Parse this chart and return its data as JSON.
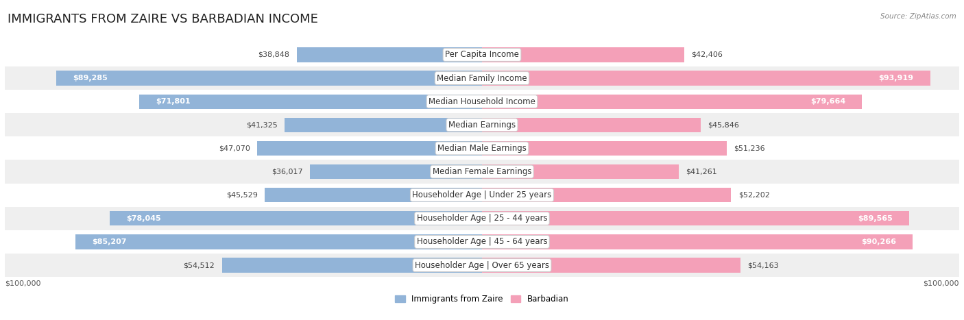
{
  "title": "IMMIGRANTS FROM ZAIRE VS BARBADIAN INCOME",
  "source": "Source: ZipAtlas.com",
  "categories": [
    "Per Capita Income",
    "Median Family Income",
    "Median Household Income",
    "Median Earnings",
    "Median Male Earnings",
    "Median Female Earnings",
    "Householder Age | Under 25 years",
    "Householder Age | 25 - 44 years",
    "Householder Age | 45 - 64 years",
    "Householder Age | Over 65 years"
  ],
  "zaire_values": [
    38848,
    89285,
    71801,
    41325,
    47070,
    36017,
    45529,
    78045,
    85207,
    54512
  ],
  "barbadian_values": [
    42406,
    93919,
    79664,
    45846,
    51236,
    41261,
    52202,
    89565,
    90266,
    54163
  ],
  "zaire_color": "#92b4d8",
  "zaire_color_dark": "#5b8fc9",
  "barbadian_color": "#f4a0b8",
  "barbadian_color_dark": "#e8638a",
  "zaire_label": "Immigrants from Zaire",
  "barbadian_label": "Barbadian",
  "max_value": 100000,
  "bg_color": "#ffffff",
  "row_bg_light": "#efefef",
  "row_bg_white": "#ffffff",
  "title_fontsize": 13,
  "cat_fontsize": 8.5,
  "value_fontsize": 8.0,
  "axis_label": "$100,000",
  "inside_threshold": 55000
}
